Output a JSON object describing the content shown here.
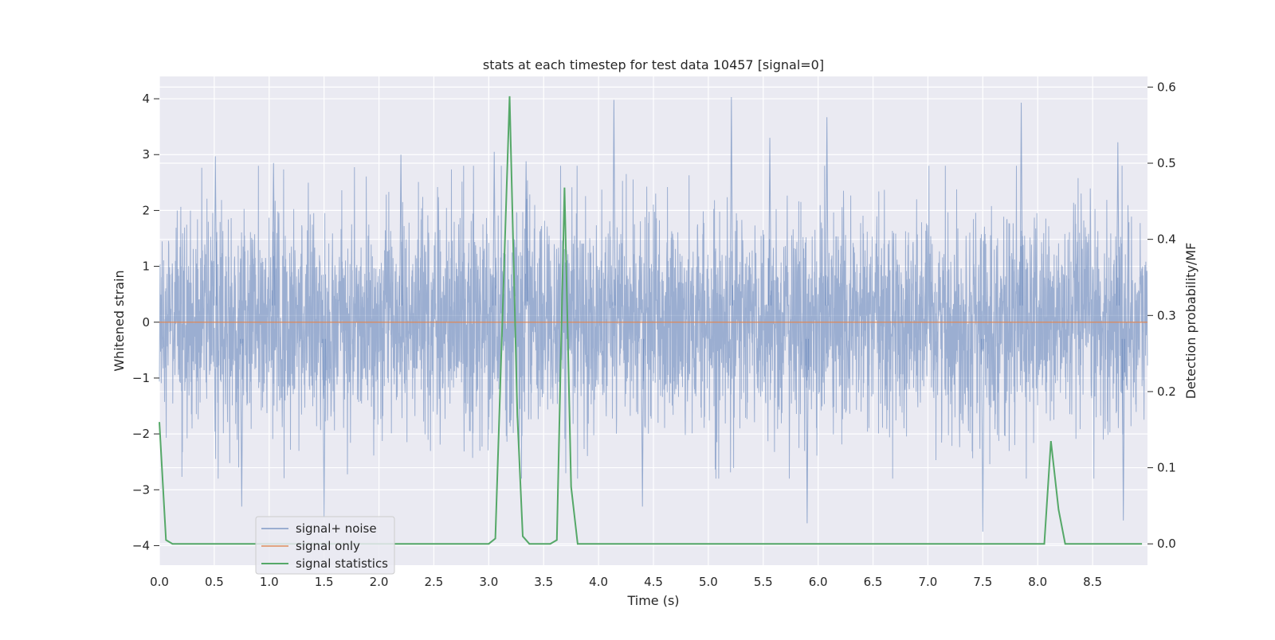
{
  "chart_data": {
    "type": "line",
    "title": "stats at each timestep for test data 10457 [signal=0]",
    "xlabel": "Time (s)",
    "ylabel": "Whitened strain",
    "ylabel_right": "Detection probability/MF",
    "xlim": [
      0,
      9.0
    ],
    "ylim": [
      -4.35,
      4.4
    ],
    "ylim_right": [
      -0.028,
      0.614
    ],
    "x_ticks": [
      "0.0",
      "0.5",
      "1.0",
      "1.5",
      "2.0",
      "2.5",
      "3.0",
      "3.5",
      "4.0",
      "4.5",
      "5.0",
      "5.5",
      "6.0",
      "6.5",
      "7.0",
      "7.5",
      "8.0",
      "8.5"
    ],
    "y_ticks": [
      "−4",
      "−3",
      "−2",
      "−1",
      "0",
      "1",
      "2",
      "3",
      "4"
    ],
    "y_ticks_right": [
      "0.0",
      "0.1",
      "0.2",
      "0.3",
      "0.4",
      "0.5",
      "0.6"
    ],
    "grid": true,
    "legend_position": "lower-left",
    "colors": {
      "background": "#eaeaf2",
      "grid": "#ffffff",
      "noise": "#4c72b0",
      "signal": "#dd8452",
      "statistics": "#55a868"
    },
    "series": [
      {
        "name": "signal+ noise",
        "axis": "left",
        "description_values": "dense noise samples roughly within ±1.5, peaks up to about ±4",
        "peaks": [
          {
            "x": 0.51,
            "y": 2.97
          },
          {
            "x": 1.04,
            "y": 2.85
          },
          {
            "x": 2.2,
            "y": 3.0
          },
          {
            "x": 3.05,
            "y": 3.05
          },
          {
            "x": 3.34,
            "y": 2.88
          },
          {
            "x": 4.14,
            "y": 3.98
          },
          {
            "x": 5.21,
            "y": 4.03
          },
          {
            "x": 5.56,
            "y": 3.3
          },
          {
            "x": 6.08,
            "y": 3.67
          },
          {
            "x": 7.85,
            "y": 3.93
          },
          {
            "x": 8.73,
            "y": 3.22
          },
          {
            "x": 1.5,
            "y": -3.5
          },
          {
            "x": 0.75,
            "y": -3.3
          },
          {
            "x": 5.9,
            "y": -3.6
          },
          {
            "x": 7.5,
            "y": -3.75
          },
          {
            "x": 8.78,
            "y": -3.55
          },
          {
            "x": 4.4,
            "y": -3.3
          }
        ]
      },
      {
        "name": "signal only",
        "axis": "left",
        "x": [
          0,
          9.0
        ],
        "y": [
          0,
          0
        ]
      },
      {
        "name": "signal statistics",
        "axis": "right",
        "x": [
          0.0,
          0.06,
          0.12,
          0.5,
          1.0,
          1.5,
          2.0,
          2.5,
          3.0,
          3.06,
          3.19,
          3.26,
          3.31,
          3.37,
          3.56,
          3.62,
          3.69,
          3.75,
          3.81,
          4.0,
          5.0,
          6.0,
          7.0,
          8.06,
          8.12,
          8.19,
          8.25,
          8.5,
          8.95
        ],
        "y": [
          0.16,
          0.005,
          0.0,
          0.0,
          0.0,
          0.0,
          0.0,
          0.0,
          0.0,
          0.007,
          0.588,
          0.17,
          0.01,
          0.0,
          0.0,
          0.005,
          0.468,
          0.075,
          0.0,
          0.0,
          0.0,
          0.0,
          0.0,
          0.0,
          0.135,
          0.045,
          0.0,
          0.0,
          0.0
        ]
      }
    ]
  }
}
